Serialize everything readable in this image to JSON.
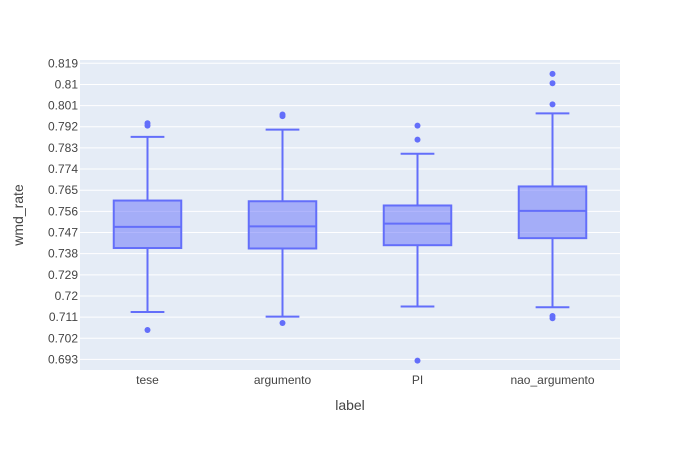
{
  "chart_data": {
    "type": "box",
    "xlabel": "label",
    "ylabel": "wmd_rate",
    "ylim": [
      0.6885,
      0.8204
    ],
    "y_ticks": [
      "0.693",
      "0.702",
      "0.711",
      "0.72",
      "0.729",
      "0.738",
      "0.747",
      "0.756",
      "0.765",
      "0.774",
      "0.783",
      "0.792",
      "0.801",
      "0.81",
      "0.819"
    ],
    "categories": [
      "tese",
      "argumento",
      "PI",
      "nao_argumento"
    ],
    "boxes": [
      {
        "label": "tese",
        "lower_fence": 0.7132,
        "q1": 0.7404,
        "median": 0.7494,
        "q3": 0.7606,
        "upper_fence": 0.7877,
        "outliers": [
          0.7055,
          0.7925,
          0.7935
        ]
      },
      {
        "label": "argumento",
        "lower_fence": 0.7112,
        "q1": 0.7402,
        "median": 0.7496,
        "q3": 0.7603,
        "upper_fence": 0.7908,
        "outliers": [
          0.7085,
          0.7965,
          0.7972
        ]
      },
      {
        "label": "PI",
        "lower_fence": 0.7155,
        "q1": 0.7416,
        "median": 0.7508,
        "q3": 0.7585,
        "upper_fence": 0.7805,
        "outliers": [
          0.6925,
          0.7865,
          0.7925
        ]
      },
      {
        "label": "nao_argumento",
        "lower_fence": 0.7152,
        "q1": 0.7446,
        "median": 0.7562,
        "q3": 0.7666,
        "upper_fence": 0.7977,
        "outliers": [
          0.7105,
          0.7115,
          0.8015,
          0.8105,
          0.8145
        ]
      }
    ],
    "colors": {
      "box_line": "#636efa",
      "box_fill": "#636efa",
      "plot_bg": "#e5ecf6",
      "grid": "#ffffff"
    },
    "grid": true,
    "legend": "none"
  }
}
